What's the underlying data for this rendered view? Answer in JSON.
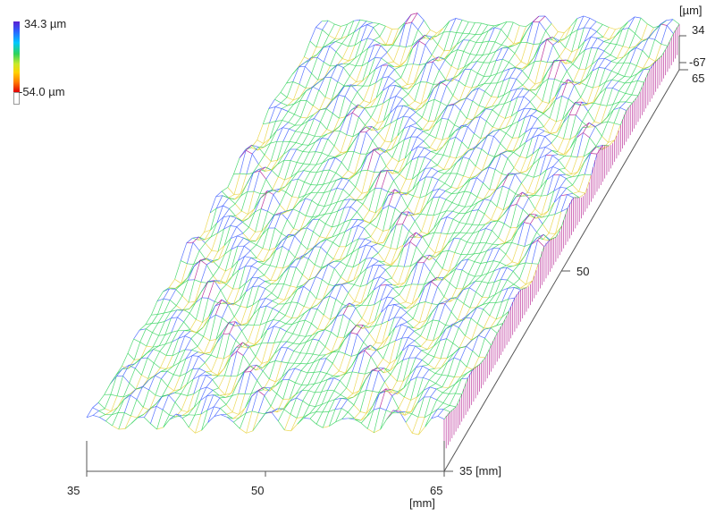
{
  "legend": {
    "max_label": "34.3 µm",
    "min_label": "-54.0 µm",
    "gradient": [
      "#5a1fd1",
      "#2b62ff",
      "#00c8ff",
      "#2fd25a",
      "#c7e92b",
      "#ffd200",
      "#ff7a00",
      "#e00000"
    ]
  },
  "axes": {
    "z_unit": "[µm]",
    "z_top": "34",
    "z_bottom": "-67",
    "depth_far": "65",
    "depth_mid": "50",
    "depth_near": "35 [mm]",
    "x_left": "35",
    "x_mid": "50",
    "x_right": "65",
    "x_unit": "[mm]"
  },
  "colors": {
    "axis": "#555555",
    "wire_low": "#e8d23a",
    "wire_mid": "#2fd25a",
    "wire_high": "#3a5bff",
    "wire_peak": "#b0108a"
  }
}
